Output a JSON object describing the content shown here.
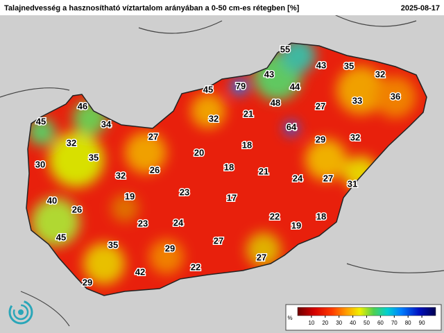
{
  "header": {
    "title": "Talajnedvesség a hasznosítható víztartalom arányában a 0-50 cm-es rétegben [%]",
    "date": "2025-08-17"
  },
  "labels": [
    55,
    43,
    35,
    32,
    43,
    79,
    44,
    45,
    36,
    48,
    27,
    33,
    46,
    21,
    32,
    64,
    45,
    34,
    27,
    29,
    32,
    32,
    18,
    35,
    20,
    30,
    26,
    18,
    21,
    32,
    24,
    27,
    31,
    19,
    23,
    17,
    40,
    26,
    22,
    18,
    23,
    24,
    19,
    45,
    27,
    35,
    29,
    27,
    22,
    42,
    29
  ],
  "legend": {
    "unit": "%",
    "range": [
      0,
      100
    ],
    "ticks": [
      10,
      20,
      30,
      40,
      50,
      60,
      70,
      80,
      90
    ]
  }
}
